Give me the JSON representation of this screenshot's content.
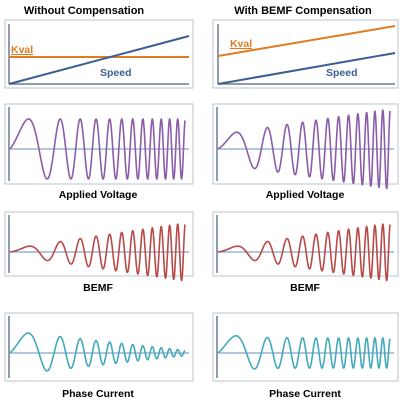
{
  "columns": [
    {
      "title": "Without Compensation",
      "kval_label": "Kval",
      "speed_label": "Speed",
      "kval_trend": "constant",
      "panels": [
        {
          "caption": "Applied Voltage",
          "amplitude_trend": "constant",
          "color": "#8b5da8"
        },
        {
          "caption": "BEMF",
          "amplitude_trend": "increasing",
          "color": "#b84a48"
        },
        {
          "caption": "Phase Current",
          "amplitude_trend": "decreasing",
          "color": "#43a9bd"
        }
      ]
    },
    {
      "title": "With BEMF Compensation",
      "kval_label": "Kval",
      "speed_label": "Speed",
      "kval_trend": "increasing",
      "panels": [
        {
          "caption": "Applied Voltage",
          "amplitude_trend": "increasing",
          "color": "#8b5da8"
        },
        {
          "caption": "BEMF",
          "amplitude_trend": "increasing",
          "color": "#b84a48"
        },
        {
          "caption": "Phase Current",
          "amplitude_trend": "constant",
          "color": "#43a9bd"
        }
      ]
    }
  ],
  "colors": {
    "kval": "#e07b22",
    "speed": "#3b5e94",
    "axis": "#6b7b8c",
    "zero_line": "#6a8fb5",
    "border": "#b8c4d0"
  }
}
